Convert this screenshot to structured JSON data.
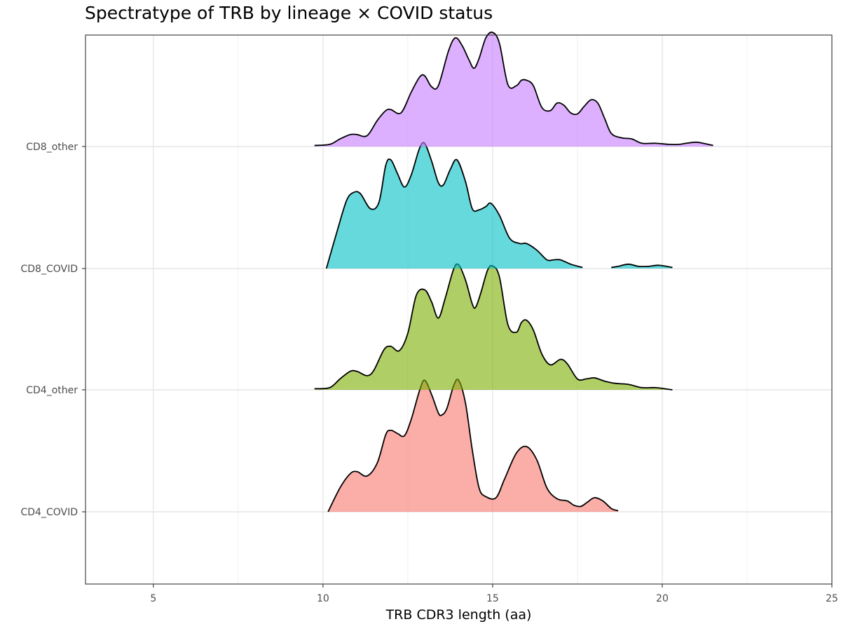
{
  "chart_data": {
    "type": "ridgeline",
    "title": "Spectratype of TRB by lineage × COVID status",
    "xlabel": "TRB CDR3 length (aa)",
    "ylabel": "",
    "xlim": [
      3,
      25
    ],
    "x_ticks": [
      5,
      10,
      15,
      20,
      25
    ],
    "categories": [
      "CD4_COVID",
      "CD4_other",
      "CD8_COVID",
      "CD8_other"
    ],
    "grid": true,
    "series": [
      {
        "name": "CD4_COVID",
        "color": "#F8766D",
        "segments": [
          [
            [
              10.15,
              0.0
            ],
            [
              10.5,
              0.22
            ],
            [
              10.8,
              0.35
            ],
            [
              11.0,
              0.37
            ],
            [
              11.3,
              0.33
            ],
            [
              11.6,
              0.45
            ],
            [
              11.85,
              0.71
            ],
            [
              12.0,
              0.75
            ],
            [
              12.2,
              0.72
            ],
            [
              12.4,
              0.7
            ],
            [
              12.6,
              0.85
            ],
            [
              12.85,
              1.12
            ],
            [
              13.0,
              1.21
            ],
            [
              13.2,
              1.08
            ],
            [
              13.4,
              0.91
            ],
            [
              13.5,
              0.89
            ],
            [
              13.65,
              0.95
            ],
            [
              13.85,
              1.16
            ],
            [
              14.0,
              1.21
            ],
            [
              14.2,
              1.0
            ],
            [
              14.4,
              0.57
            ],
            [
              14.6,
              0.22
            ],
            [
              14.8,
              0.14
            ],
            [
              15.1,
              0.13
            ],
            [
              15.35,
              0.3
            ],
            [
              15.7,
              0.54
            ],
            [
              16.0,
              0.6
            ],
            [
              16.3,
              0.48
            ],
            [
              16.6,
              0.22
            ],
            [
              16.9,
              0.12
            ],
            [
              17.2,
              0.1
            ],
            [
              17.4,
              0.06
            ],
            [
              17.6,
              0.05
            ],
            [
              17.8,
              0.09
            ],
            [
              18.0,
              0.13
            ],
            [
              18.25,
              0.1
            ],
            [
              18.5,
              0.03
            ],
            [
              18.7,
              0.01
            ]
          ]
        ]
      },
      {
        "name": "CD4_other",
        "color": "#7CAE00",
        "segments": [
          [
            [
              9.75,
              0.01
            ],
            [
              10.2,
              0.02
            ],
            [
              10.5,
              0.1
            ],
            [
              10.8,
              0.17
            ],
            [
              11.0,
              0.17
            ],
            [
              11.3,
              0.13
            ],
            [
              11.5,
              0.18
            ],
            [
              11.8,
              0.37
            ],
            [
              12.0,
              0.4
            ],
            [
              12.25,
              0.36
            ],
            [
              12.5,
              0.52
            ],
            [
              12.75,
              0.87
            ],
            [
              13.0,
              0.92
            ],
            [
              13.2,
              0.81
            ],
            [
              13.4,
              0.66
            ],
            [
              13.6,
              0.84
            ],
            [
              13.85,
              1.11
            ],
            [
              14.0,
              1.15
            ],
            [
              14.2,
              1.01
            ],
            [
              14.4,
              0.79
            ],
            [
              14.5,
              0.76
            ],
            [
              14.65,
              0.89
            ],
            [
              14.85,
              1.1
            ],
            [
              15.0,
              1.14
            ],
            [
              15.2,
              1.04
            ],
            [
              15.45,
              0.6
            ],
            [
              15.7,
              0.53
            ],
            [
              15.85,
              0.62
            ],
            [
              16.0,
              0.64
            ],
            [
              16.2,
              0.55
            ],
            [
              16.45,
              0.33
            ],
            [
              16.7,
              0.23
            ],
            [
              17.0,
              0.28
            ],
            [
              17.2,
              0.24
            ],
            [
              17.5,
              0.1
            ],
            [
              17.75,
              0.1
            ],
            [
              18.0,
              0.11
            ],
            [
              18.3,
              0.08
            ],
            [
              18.6,
              0.06
            ],
            [
              19.0,
              0.05
            ],
            [
              19.4,
              0.02
            ],
            [
              19.8,
              0.02
            ],
            [
              20.3,
              0.0
            ]
          ]
        ]
      },
      {
        "name": "CD8_COVID",
        "color": "#00BFC4",
        "segments": [
          [
            [
              10.1,
              0.0
            ],
            [
              10.45,
              0.38
            ],
            [
              10.7,
              0.63
            ],
            [
              10.9,
              0.7
            ],
            [
              11.1,
              0.69
            ],
            [
              11.4,
              0.55
            ],
            [
              11.65,
              0.61
            ],
            [
              11.85,
              0.95
            ],
            [
              12.0,
              1.0
            ],
            [
              12.2,
              0.87
            ],
            [
              12.4,
              0.75
            ],
            [
              12.6,
              0.86
            ],
            [
              12.85,
              1.11
            ],
            [
              13.0,
              1.15
            ],
            [
              13.2,
              0.99
            ],
            [
              13.4,
              0.79
            ],
            [
              13.55,
              0.77
            ],
            [
              13.75,
              0.91
            ],
            [
              13.95,
              1.0
            ],
            [
              14.2,
              0.8
            ],
            [
              14.4,
              0.55
            ],
            [
              14.6,
              0.54
            ],
            [
              14.8,
              0.57
            ],
            [
              14.95,
              0.6
            ],
            [
              15.2,
              0.49
            ],
            [
              15.5,
              0.28
            ],
            [
              15.8,
              0.23
            ],
            [
              16.0,
              0.23
            ],
            [
              16.3,
              0.17
            ],
            [
              16.6,
              0.08
            ],
            [
              16.8,
              0.08
            ],
            [
              17.0,
              0.08
            ],
            [
              17.3,
              0.04
            ],
            [
              17.65,
              0.01
            ]
          ],
          [
            [
              18.5,
              0.01
            ],
            [
              18.7,
              0.02
            ],
            [
              19.0,
              0.04
            ],
            [
              19.3,
              0.02
            ],
            [
              19.6,
              0.02
            ],
            [
              19.9,
              0.03
            ],
            [
              20.3,
              0.01
            ]
          ]
        ]
      },
      {
        "name": "CD8_other",
        "color": "#C77CFF",
        "segments": [
          [
            [
              9.75,
              0.01
            ],
            [
              10.2,
              0.02
            ],
            [
              10.5,
              0.07
            ],
            [
              10.8,
              0.11
            ],
            [
              11.0,
              0.11
            ],
            [
              11.3,
              0.1
            ],
            [
              11.6,
              0.24
            ],
            [
              11.85,
              0.33
            ],
            [
              12.0,
              0.34
            ],
            [
              12.3,
              0.31
            ],
            [
              12.6,
              0.5
            ],
            [
              12.85,
              0.64
            ],
            [
              13.0,
              0.65
            ],
            [
              13.2,
              0.55
            ],
            [
              13.4,
              0.56
            ],
            [
              13.7,
              0.88
            ],
            [
              13.9,
              1.0
            ],
            [
              14.1,
              0.93
            ],
            [
              14.3,
              0.8
            ],
            [
              14.45,
              0.72
            ],
            [
              14.6,
              0.81
            ],
            [
              14.8,
              1.0
            ],
            [
              15.0,
              1.05
            ],
            [
              15.2,
              0.95
            ],
            [
              15.45,
              0.57
            ],
            [
              15.7,
              0.56
            ],
            [
              15.85,
              0.61
            ],
            [
              16.0,
              0.61
            ],
            [
              16.2,
              0.56
            ],
            [
              16.45,
              0.36
            ],
            [
              16.7,
              0.33
            ],
            [
              16.9,
              0.4
            ],
            [
              17.1,
              0.38
            ],
            [
              17.3,
              0.31
            ],
            [
              17.5,
              0.3
            ],
            [
              17.7,
              0.37
            ],
            [
              17.9,
              0.43
            ],
            [
              18.1,
              0.4
            ],
            [
              18.3,
              0.26
            ],
            [
              18.5,
              0.12
            ],
            [
              18.8,
              0.08
            ],
            [
              19.1,
              0.07
            ],
            [
              19.4,
              0.03
            ],
            [
              19.8,
              0.03
            ],
            [
              20.2,
              0.02
            ],
            [
              20.5,
              0.02
            ],
            [
              20.7,
              0.03
            ],
            [
              21.0,
              0.04
            ],
            [
              21.2,
              0.03
            ],
            [
              21.5,
              0.01
            ]
          ]
        ]
      }
    ]
  }
}
